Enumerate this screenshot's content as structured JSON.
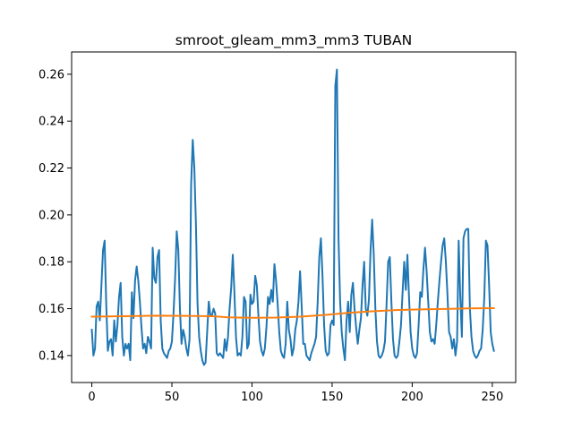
{
  "chart_data": {
    "type": "line",
    "title": "smroot_gleam_mm3_mm3 TUBAN",
    "xlabel": "",
    "ylabel": "",
    "xlim": [
      -12.6,
      264.6
    ],
    "ylim": [
      0.1285,
      0.2695
    ],
    "x_ticks": [
      0,
      50,
      100,
      150,
      200,
      250
    ],
    "x_tick_labels": [
      "0",
      "50",
      "100",
      "150",
      "200",
      "250"
    ],
    "y_ticks": [
      0.14,
      0.16,
      0.18,
      0.2,
      0.22,
      0.24,
      0.26
    ],
    "y_tick_labels": [
      "0.14",
      "0.16",
      "0.18",
      "0.20",
      "0.22",
      "0.24",
      "0.26"
    ],
    "grid": false,
    "legend": "none",
    "series": [
      {
        "color": "#1f77b4",
        "points": [
          [
            0,
            0.151
          ],
          [
            1,
            0.14
          ],
          [
            2,
            0.143
          ],
          [
            3,
            0.161
          ],
          [
            4,
            0.163
          ],
          [
            5,
            0.155
          ],
          [
            6,
            0.17
          ],
          [
            7,
            0.185
          ],
          [
            8,
            0.189
          ],
          [
            9,
            0.162
          ],
          [
            10,
            0.142
          ],
          [
            11,
            0.146
          ],
          [
            12,
            0.147
          ],
          [
            13,
            0.14
          ],
          [
            14,
            0.155
          ],
          [
            15,
            0.146
          ],
          [
            16,
            0.153
          ],
          [
            17,
            0.165
          ],
          [
            18,
            0.171
          ],
          [
            19,
            0.148
          ],
          [
            20,
            0.14
          ],
          [
            21,
            0.145
          ],
          [
            22,
            0.143
          ],
          [
            23,
            0.145
          ],
          [
            24,
            0.138
          ],
          [
            25,
            0.167
          ],
          [
            26,
            0.156
          ],
          [
            27,
            0.172
          ],
          [
            28,
            0.178
          ],
          [
            29,
            0.172
          ],
          [
            30,
            0.163
          ],
          [
            31,
            0.152
          ],
          [
            32,
            0.143
          ],
          [
            33,
            0.145
          ],
          [
            34,
            0.141
          ],
          [
            35,
            0.148
          ],
          [
            36,
            0.146
          ],
          [
            37,
            0.143
          ],
          [
            38,
            0.186
          ],
          [
            39,
            0.173
          ],
          [
            40,
            0.171
          ],
          [
            41,
            0.182
          ],
          [
            42,
            0.185
          ],
          [
            43,
            0.155
          ],
          [
            44,
            0.143
          ],
          [
            45,
            0.141
          ],
          [
            46,
            0.14
          ],
          [
            47,
            0.139
          ],
          [
            48,
            0.142
          ],
          [
            49,
            0.143
          ],
          [
            50,
            0.146
          ],
          [
            51,
            0.158
          ],
          [
            52,
            0.173
          ],
          [
            53,
            0.193
          ],
          [
            54,
            0.185
          ],
          [
            55,
            0.16
          ],
          [
            56,
            0.145
          ],
          [
            57,
            0.151
          ],
          [
            58,
            0.148
          ],
          [
            59,
            0.143
          ],
          [
            60,
            0.14
          ],
          [
            61,
            0.147
          ],
          [
            62,
            0.213
          ],
          [
            63,
            0.232
          ],
          [
            64,
            0.22
          ],
          [
            65,
            0.196
          ],
          [
            66,
            0.162
          ],
          [
            67,
            0.148
          ],
          [
            68,
            0.142
          ],
          [
            69,
            0.138
          ],
          [
            70,
            0.136
          ],
          [
            71,
            0.137
          ],
          [
            72,
            0.15
          ],
          [
            73,
            0.163
          ],
          [
            74,
            0.157
          ],
          [
            75,
            0.157
          ],
          [
            76,
            0.16
          ],
          [
            77,
            0.158
          ],
          [
            78,
            0.141
          ],
          [
            79,
            0.14
          ],
          [
            80,
            0.141
          ],
          [
            81,
            0.14
          ],
          [
            82,
            0.139
          ],
          [
            83,
            0.147
          ],
          [
            84,
            0.142
          ],
          [
            85,
            0.148
          ],
          [
            86,
            0.16
          ],
          [
            87,
            0.169
          ],
          [
            88,
            0.183
          ],
          [
            89,
            0.167
          ],
          [
            90,
            0.148
          ],
          [
            91,
            0.14
          ],
          [
            92,
            0.141
          ],
          [
            93,
            0.14
          ],
          [
            94,
            0.148
          ],
          [
            95,
            0.165
          ],
          [
            96,
            0.163
          ],
          [
            97,
            0.143
          ],
          [
            98,
            0.145
          ],
          [
            99,
            0.166
          ],
          [
            100,
            0.162
          ],
          [
            101,
            0.163
          ],
          [
            102,
            0.174
          ],
          [
            103,
            0.17
          ],
          [
            104,
            0.157
          ],
          [
            105,
            0.146
          ],
          [
            106,
            0.142
          ],
          [
            107,
            0.14
          ],
          [
            108,
            0.143
          ],
          [
            109,
            0.152
          ],
          [
            110,
            0.165
          ],
          [
            111,
            0.162
          ],
          [
            112,
            0.168
          ],
          [
            113,
            0.163
          ],
          [
            114,
            0.179
          ],
          [
            115,
            0.172
          ],
          [
            116,
            0.162
          ],
          [
            117,
            0.15
          ],
          [
            118,
            0.142
          ],
          [
            119,
            0.14
          ],
          [
            120,
            0.139
          ],
          [
            121,
            0.145
          ],
          [
            122,
            0.163
          ],
          [
            123,
            0.151
          ],
          [
            124,
            0.147
          ],
          [
            125,
            0.14
          ],
          [
            126,
            0.143
          ],
          [
            127,
            0.151
          ],
          [
            128,
            0.155
          ],
          [
            129,
            0.163
          ],
          [
            130,
            0.176
          ],
          [
            131,
            0.161
          ],
          [
            132,
            0.145
          ],
          [
            133,
            0.145
          ],
          [
            134,
            0.14
          ],
          [
            135,
            0.139
          ],
          [
            136,
            0.138
          ],
          [
            137,
            0.141
          ],
          [
            138,
            0.143
          ],
          [
            139,
            0.145
          ],
          [
            140,
            0.148
          ],
          [
            141,
            0.163
          ],
          [
            142,
            0.182
          ],
          [
            143,
            0.19
          ],
          [
            144,
            0.174
          ],
          [
            145,
            0.153
          ],
          [
            146,
            0.142
          ],
          [
            147,
            0.14
          ],
          [
            148,
            0.141
          ],
          [
            149,
            0.153
          ],
          [
            150,
            0.155
          ],
          [
            151,
            0.153
          ],
          [
            152,
            0.255
          ],
          [
            153,
            0.262
          ],
          [
            154,
            0.19
          ],
          [
            155,
            0.163
          ],
          [
            156,
            0.15
          ],
          [
            157,
            0.143
          ],
          [
            158,
            0.138
          ],
          [
            159,
            0.155
          ],
          [
            160,
            0.163
          ],
          [
            161,
            0.15
          ],
          [
            162,
            0.166
          ],
          [
            163,
            0.171
          ],
          [
            164,
            0.16
          ],
          [
            165,
            0.152
          ],
          [
            166,
            0.145
          ],
          [
            167,
            0.151
          ],
          [
            168,
            0.156
          ],
          [
            169,
            0.17
          ],
          [
            170,
            0.18
          ],
          [
            171,
            0.16
          ],
          [
            172,
            0.157
          ],
          [
            173,
            0.164
          ],
          [
            174,
            0.185
          ],
          [
            175,
            0.198
          ],
          [
            176,
            0.183
          ],
          [
            177,
            0.16
          ],
          [
            178,
            0.146
          ],
          [
            179,
            0.14
          ],
          [
            180,
            0.139
          ],
          [
            181,
            0.14
          ],
          [
            182,
            0.142
          ],
          [
            183,
            0.146
          ],
          [
            184,
            0.162
          ],
          [
            185,
            0.18
          ],
          [
            186,
            0.182
          ],
          [
            187,
            0.163
          ],
          [
            188,
            0.147
          ],
          [
            189,
            0.14
          ],
          [
            190,
            0.139
          ],
          [
            191,
            0.14
          ],
          [
            192,
            0.146
          ],
          [
            193,
            0.153
          ],
          [
            194,
            0.167
          ],
          [
            195,
            0.18
          ],
          [
            196,
            0.168
          ],
          [
            197,
            0.183
          ],
          [
            198,
            0.165
          ],
          [
            199,
            0.15
          ],
          [
            200,
            0.143
          ],
          [
            201,
            0.14
          ],
          [
            202,
            0.139
          ],
          [
            203,
            0.141
          ],
          [
            204,
            0.153
          ],
          [
            205,
            0.167
          ],
          [
            206,
            0.165
          ],
          [
            207,
            0.177
          ],
          [
            208,
            0.186
          ],
          [
            209,
            0.176
          ],
          [
            210,
            0.163
          ],
          [
            211,
            0.15
          ],
          [
            212,
            0.146
          ],
          [
            213,
            0.147
          ],
          [
            214,
            0.145
          ],
          [
            215,
            0.153
          ],
          [
            216,
            0.163
          ],
          [
            217,
            0.172
          ],
          [
            218,
            0.18
          ],
          [
            219,
            0.187
          ],
          [
            220,
            0.19
          ],
          [
            221,
            0.18
          ],
          [
            222,
            0.166
          ],
          [
            223,
            0.15
          ],
          [
            224,
            0.148
          ],
          [
            225,
            0.143
          ],
          [
            226,
            0.147
          ],
          [
            227,
            0.14
          ],
          [
            228,
            0.146
          ],
          [
            229,
            0.189
          ],
          [
            230,
            0.165
          ],
          [
            231,
            0.148
          ],
          [
            232,
            0.19
          ],
          [
            233,
            0.193
          ],
          [
            234,
            0.194
          ],
          [
            235,
            0.194
          ],
          [
            236,
            0.16
          ],
          [
            237,
            0.148
          ],
          [
            238,
            0.142
          ],
          [
            239,
            0.14
          ],
          [
            240,
            0.139
          ],
          [
            241,
            0.14
          ],
          [
            242,
            0.142
          ],
          [
            243,
            0.143
          ],
          [
            244,
            0.151
          ],
          [
            245,
            0.165
          ],
          [
            246,
            0.189
          ],
          [
            247,
            0.187
          ],
          [
            248,
            0.17
          ],
          [
            249,
            0.15
          ],
          [
            250,
            0.145
          ],
          [
            251,
            0.142
          ]
        ]
      },
      {
        "color": "#ff7f0e",
        "points": [
          [
            0,
            0.1566
          ],
          [
            20,
            0.1568
          ],
          [
            40,
            0.157
          ],
          [
            60,
            0.1569
          ],
          [
            75,
            0.1568
          ],
          [
            85,
            0.1563
          ],
          [
            100,
            0.1561
          ],
          [
            115,
            0.1562
          ],
          [
            130,
            0.1566
          ],
          [
            145,
            0.1573
          ],
          [
            160,
            0.1582
          ],
          [
            175,
            0.1589
          ],
          [
            190,
            0.1594
          ],
          [
            205,
            0.1597
          ],
          [
            220,
            0.1599
          ],
          [
            235,
            0.1601
          ],
          [
            251,
            0.1602
          ]
        ]
      }
    ]
  }
}
